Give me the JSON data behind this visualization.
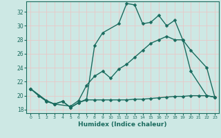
{
  "xlabel": "Humidex (Indice chaleur)",
  "bg_color": "#cde8e4",
  "grid_color": "#e8c8c8",
  "line_color": "#1a6b5e",
  "line_width": 1.0,
  "marker": "D",
  "marker_size": 2.5,
  "xlim": [
    -0.5,
    23.5
  ],
  "ylim": [
    17.5,
    33.5
  ],
  "yticks": [
    18,
    20,
    22,
    24,
    26,
    28,
    30,
    32
  ],
  "xticks": [
    0,
    1,
    2,
    3,
    4,
    5,
    6,
    7,
    8,
    9,
    10,
    11,
    12,
    13,
    14,
    15,
    16,
    17,
    18,
    19,
    20,
    21,
    22,
    23
  ],
  "xtick_labels": [
    "0",
    "1",
    "2",
    "3",
    "4",
    "5",
    "6",
    "7",
    "8",
    "9",
    "10",
    "11",
    "12",
    "13",
    "14",
    "15",
    "16",
    "17",
    "18",
    "19",
    "20",
    "21",
    "22",
    "23"
  ],
  "line1_x": [
    0,
    1,
    2,
    3,
    4,
    5,
    6,
    7,
    8,
    9,
    11,
    12,
    13,
    14,
    15,
    16,
    17,
    18,
    19,
    20,
    22,
    23
  ],
  "line1_y": [
    21,
    20,
    19.2,
    18.8,
    19.2,
    18.3,
    19.0,
    19.5,
    27.2,
    29.0,
    30.3,
    33.2,
    33.0,
    30.3,
    30.5,
    31.5,
    30.0,
    30.8,
    28.0,
    26.5,
    24.0,
    19.8
  ],
  "line2_x": [
    0,
    2,
    3,
    5,
    6,
    7,
    8,
    9,
    10,
    11,
    12,
    13,
    14,
    15,
    16,
    17,
    18,
    19,
    20,
    22,
    23
  ],
  "line2_y": [
    21,
    19.2,
    18.8,
    18.5,
    19.3,
    21.5,
    22.8,
    23.5,
    22.5,
    23.8,
    24.5,
    25.5,
    26.5,
    27.5,
    28.0,
    28.5,
    28.0,
    28.0,
    23.5,
    20.0,
    19.8
  ],
  "line3_x": [
    0,
    2,
    3,
    4,
    5,
    6,
    7,
    8,
    9,
    10,
    11,
    12,
    13,
    14,
    15,
    16,
    17,
    18,
    19,
    20,
    21,
    22,
    23
  ],
  "line3_y": [
    21,
    19.3,
    18.8,
    19.2,
    18.3,
    19.0,
    19.4,
    19.4,
    19.4,
    19.4,
    19.4,
    19.4,
    19.5,
    19.5,
    19.6,
    19.7,
    19.8,
    19.9,
    19.9,
    20.0,
    20.0,
    20.0,
    19.8
  ]
}
